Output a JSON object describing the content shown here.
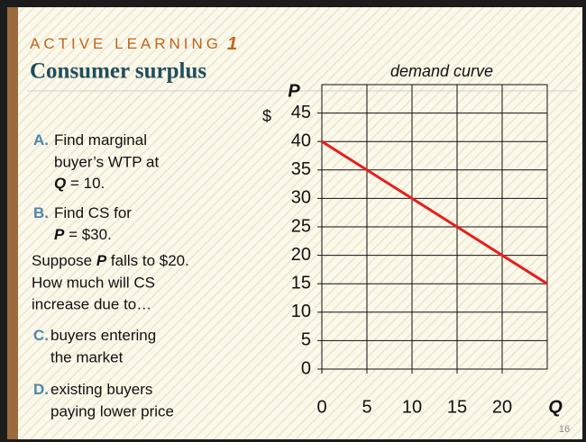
{
  "slide": {
    "kicker": "ACTIVE LEARNING",
    "kicker_num": "1",
    "title": "Consumer surplus",
    "page": "16",
    "a": {
      "label": "A.",
      "l1": "Find marginal",
      "l2": "buyer’s WTP at",
      "var": "Q",
      "l3": " = 10."
    },
    "b": {
      "label": "B.",
      "l1": "Find CS for",
      "var": "P",
      "l2": " = $30."
    },
    "q": {
      "pre": "Suppose ",
      "var": "P",
      "post": " falls to $20.",
      "l2": "How much will CS",
      "l3": "increase due to…"
    },
    "c": {
      "label": "C.",
      "l1": "buyers entering",
      "l2": "the market"
    },
    "d": {
      "label": "D.",
      "l1": "existing buyers",
      "l2": "paying lower price"
    }
  },
  "chart_data": {
    "type": "line",
    "title": "demand curve",
    "x_label": "Q",
    "y_label": "P",
    "y_unit": "$",
    "x": [
      0,
      25
    ],
    "series": [
      {
        "name": "demand curve",
        "color": "#e61e1e",
        "values": [
          40,
          15
        ]
      }
    ],
    "xlim": [
      0,
      25
    ],
    "xticks": [
      0,
      5,
      10,
      15,
      20
    ],
    "ylim": [
      0,
      50
    ],
    "yticks": [
      0,
      5,
      10,
      15,
      20,
      25,
      30,
      35,
      40,
      45
    ],
    "grid": true
  }
}
